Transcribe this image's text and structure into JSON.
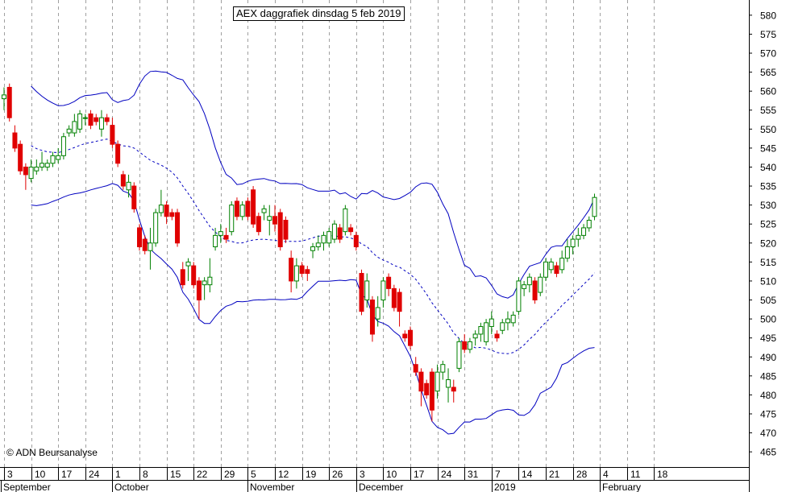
{
  "chart_data": {
    "type": "candlestick",
    "title": "AEX daggrafiek dinsdag 5 feb 2019",
    "copyright": "© ADN Beursanalyse",
    "y_axis": {
      "side": "right",
      "ylim": [
        461,
        584
      ],
      "ticks": [
        465,
        470,
        475,
        480,
        485,
        490,
        495,
        500,
        505,
        510,
        515,
        520,
        525,
        530,
        535,
        540,
        545,
        550,
        555,
        560,
        565,
        570,
        575,
        580
      ]
    },
    "x_axis": {
      "day_labels": [
        "3",
        "10",
        "17",
        "24",
        "1",
        "8",
        "15",
        "22",
        "29",
        "5",
        "12",
        "19",
        "26",
        "3",
        "10",
        "17",
        "24",
        "31",
        "7",
        "14",
        "21",
        "28",
        "4",
        "11",
        "18"
      ],
      "month_labels": [
        "September",
        "October",
        "November",
        "December",
        "2019",
        "February"
      ]
    },
    "grid": "dashed-vertical",
    "colors": {
      "up": "#008000",
      "down": "#e00000",
      "bands": "#0000c0",
      "grid": "#a0a0a0"
    },
    "candles": [
      {
        "o": 558,
        "h": 561,
        "l": 555,
        "c": 559
      },
      {
        "o": 561,
        "h": 562,
        "l": 552,
        "c": 553
      },
      {
        "o": 549,
        "h": 551,
        "l": 544,
        "c": 545
      },
      {
        "o": 546,
        "h": 547,
        "l": 538,
        "c": 539
      },
      {
        "o": 540,
        "h": 541,
        "l": 534,
        "c": 538
      },
      {
        "o": 537,
        "h": 542,
        "l": 536,
        "c": 540
      },
      {
        "o": 539,
        "h": 542,
        "l": 538,
        "c": 540
      },
      {
        "o": 540,
        "h": 544,
        "l": 539,
        "c": 541
      },
      {
        "o": 540,
        "h": 542,
        "l": 539,
        "c": 541
      },
      {
        "o": 541,
        "h": 544,
        "l": 540,
        "c": 543
      },
      {
        "o": 542,
        "h": 545,
        "l": 541,
        "c": 543
      },
      {
        "o": 543,
        "h": 549,
        "l": 542,
        "c": 548
      },
      {
        "o": 549,
        "h": 551,
        "l": 548,
        "c": 550
      },
      {
        "o": 549,
        "h": 554,
        "l": 548,
        "c": 552
      },
      {
        "o": 550,
        "h": 555,
        "l": 549,
        "c": 554
      },
      {
        "o": 553,
        "h": 554,
        "l": 551,
        "c": 553
      },
      {
        "o": 554,
        "h": 555,
        "l": 550,
        "c": 551
      },
      {
        "o": 553,
        "h": 554,
        "l": 551,
        "c": 552
      },
      {
        "o": 550,
        "h": 555,
        "l": 548,
        "c": 553
      },
      {
        "o": 553,
        "h": 554,
        "l": 551,
        "c": 552
      },
      {
        "o": 551,
        "h": 553,
        "l": 545,
        "c": 546
      },
      {
        "o": 546,
        "h": 547,
        "l": 540,
        "c": 541
      },
      {
        "o": 538,
        "h": 539,
        "l": 534,
        "c": 535
      },
      {
        "o": 534,
        "h": 538,
        "l": 532,
        "c": 536
      },
      {
        "o": 535,
        "h": 536,
        "l": 528,
        "c": 529
      },
      {
        "o": 524,
        "h": 525,
        "l": 518,
        "c": 519
      },
      {
        "o": 521,
        "h": 522,
        "l": 517,
        "c": 518
      },
      {
        "o": 518,
        "h": 524,
        "l": 513,
        "c": 520
      },
      {
        "o": 520,
        "h": 529,
        "l": 519,
        "c": 528
      },
      {
        "o": 528,
        "h": 534,
        "l": 527,
        "c": 530
      },
      {
        "o": 530,
        "h": 531,
        "l": 525,
        "c": 527
      },
      {
        "o": 528,
        "h": 529,
        "l": 526,
        "c": 527
      },
      {
        "o": 528,
        "h": 529,
        "l": 519,
        "c": 520
      },
      {
        "o": 513,
        "h": 515,
        "l": 508,
        "c": 509
      },
      {
        "o": 514,
        "h": 516,
        "l": 510,
        "c": 515
      },
      {
        "o": 514,
        "h": 515,
        "l": 508,
        "c": 509
      },
      {
        "o": 510,
        "h": 511,
        "l": 500,
        "c": 505
      },
      {
        "o": 509,
        "h": 511,
        "l": 505,
        "c": 510
      },
      {
        "o": 509,
        "h": 516,
        "l": 507,
        "c": 511
      },
      {
        "o": 519,
        "h": 524,
        "l": 518,
        "c": 522
      },
      {
        "o": 522,
        "h": 525,
        "l": 520,
        "c": 523
      },
      {
        "o": 522,
        "h": 524,
        "l": 520,
        "c": 521
      },
      {
        "o": 523,
        "h": 531,
        "l": 522,
        "c": 530
      },
      {
        "o": 531,
        "h": 532,
        "l": 526,
        "c": 527
      },
      {
        "o": 527,
        "h": 531,
        "l": 526,
        "c": 530
      },
      {
        "o": 531,
        "h": 532,
        "l": 526,
        "c": 527
      },
      {
        "o": 534,
        "h": 535,
        "l": 524,
        "c": 525
      },
      {
        "o": 527,
        "h": 528,
        "l": 522,
        "c": 523
      },
      {
        "o": 528,
        "h": 530,
        "l": 526,
        "c": 529
      },
      {
        "o": 526,
        "h": 530,
        "l": 522,
        "c": 527
      },
      {
        "o": 527,
        "h": 530,
        "l": 523,
        "c": 525
      },
      {
        "o": 528,
        "h": 529,
        "l": 518,
        "c": 519
      },
      {
        "o": 526,
        "h": 527,
        "l": 520,
        "c": 521
      },
      {
        "o": 516,
        "h": 518,
        "l": 507,
        "c": 510
      },
      {
        "o": 510,
        "h": 516,
        "l": 508,
        "c": 514
      },
      {
        "o": 514,
        "h": 515,
        "l": 511,
        "c": 512
      },
      {
        "o": 513,
        "h": 514,
        "l": 510,
        "c": 512
      },
      {
        "o": 518,
        "h": 520,
        "l": 516,
        "c": 519
      },
      {
        "o": 519,
        "h": 522,
        "l": 518,
        "c": 520
      },
      {
        "o": 520,
        "h": 523,
        "l": 518,
        "c": 522
      },
      {
        "o": 520,
        "h": 524,
        "l": 519,
        "c": 523
      },
      {
        "o": 521,
        "h": 526,
        "l": 520,
        "c": 525
      },
      {
        "o": 524,
        "h": 525,
        "l": 520,
        "c": 521
      },
      {
        "o": 523,
        "h": 530,
        "l": 522,
        "c": 529
      },
      {
        "o": 524,
        "h": 525,
        "l": 522,
        "c": 523
      },
      {
        "o": 522,
        "h": 523,
        "l": 518,
        "c": 519
      },
      {
        "o": 512,
        "h": 513,
        "l": 501,
        "c": 502
      },
      {
        "o": 505,
        "h": 512,
        "l": 503,
        "c": 510
      },
      {
        "o": 505,
        "h": 506,
        "l": 494,
        "c": 496
      },
      {
        "o": 500,
        "h": 506,
        "l": 498,
        "c": 503
      },
      {
        "o": 505,
        "h": 511,
        "l": 503,
        "c": 510
      },
      {
        "o": 511,
        "h": 512,
        "l": 506,
        "c": 508
      },
      {
        "o": 508,
        "h": 509,
        "l": 502,
        "c": 503
      },
      {
        "o": 507,
        "h": 508,
        "l": 498,
        "c": 502
      },
      {
        "o": 496,
        "h": 497,
        "l": 494,
        "c": 495
      },
      {
        "o": 497,
        "h": 498,
        "l": 492,
        "c": 493
      },
      {
        "o": 488,
        "h": 490,
        "l": 485,
        "c": 486
      },
      {
        "o": 486,
        "h": 487,
        "l": 477,
        "c": 481
      },
      {
        "o": 483,
        "h": 484,
        "l": 479,
        "c": 480
      },
      {
        "o": 486,
        "h": 487,
        "l": 473,
        "c": 476
      },
      {
        "o": 481,
        "h": 488,
        "l": 479,
        "c": 486
      },
      {
        "o": 486,
        "h": 489,
        "l": 484,
        "c": 488
      },
      {
        "o": 482,
        "h": 487,
        "l": 478,
        "c": 484
      },
      {
        "o": 482,
        "h": 484,
        "l": 478,
        "c": 481
      },
      {
        "o": 487,
        "h": 495,
        "l": 486,
        "c": 494
      },
      {
        "o": 494,
        "h": 496,
        "l": 491,
        "c": 492
      },
      {
        "o": 492,
        "h": 495,
        "l": 491,
        "c": 494
      },
      {
        "o": 495,
        "h": 497,
        "l": 493,
        "c": 496
      },
      {
        "o": 496,
        "h": 499,
        "l": 494,
        "c": 498
      },
      {
        "o": 494,
        "h": 500,
        "l": 493,
        "c": 499
      },
      {
        "o": 498,
        "h": 502,
        "l": 496,
        "c": 500
      },
      {
        "o": 496,
        "h": 497,
        "l": 494,
        "c": 495
      },
      {
        "o": 497,
        "h": 500,
        "l": 496,
        "c": 499
      },
      {
        "o": 499,
        "h": 502,
        "l": 497,
        "c": 500
      },
      {
        "o": 499,
        "h": 502,
        "l": 498,
        "c": 501
      },
      {
        "o": 502,
        "h": 511,
        "l": 501,
        "c": 510
      },
      {
        "o": 508,
        "h": 510,
        "l": 506,
        "c": 509
      },
      {
        "o": 509,
        "h": 512,
        "l": 507,
        "c": 511
      },
      {
        "o": 510,
        "h": 511,
        "l": 504,
        "c": 505
      },
      {
        "o": 507,
        "h": 512,
        "l": 506,
        "c": 511
      },
      {
        "o": 511,
        "h": 516,
        "l": 510,
        "c": 515
      },
      {
        "o": 513,
        "h": 516,
        "l": 512,
        "c": 515
      },
      {
        "o": 514,
        "h": 515,
        "l": 511,
        "c": 512
      },
      {
        "o": 513,
        "h": 518,
        "l": 512,
        "c": 516
      },
      {
        "o": 516,
        "h": 521,
        "l": 515,
        "c": 519
      },
      {
        "o": 519,
        "h": 522,
        "l": 517,
        "c": 521
      },
      {
        "o": 521,
        "h": 524,
        "l": 519,
        "c": 522
      },
      {
        "o": 522,
        "h": 525,
        "l": 521,
        "c": 524
      },
      {
        "o": 524,
        "h": 527,
        "l": 523,
        "c": 526
      },
      {
        "o": 527,
        "h": 533,
        "l": 526,
        "c": 532
      }
    ]
  }
}
